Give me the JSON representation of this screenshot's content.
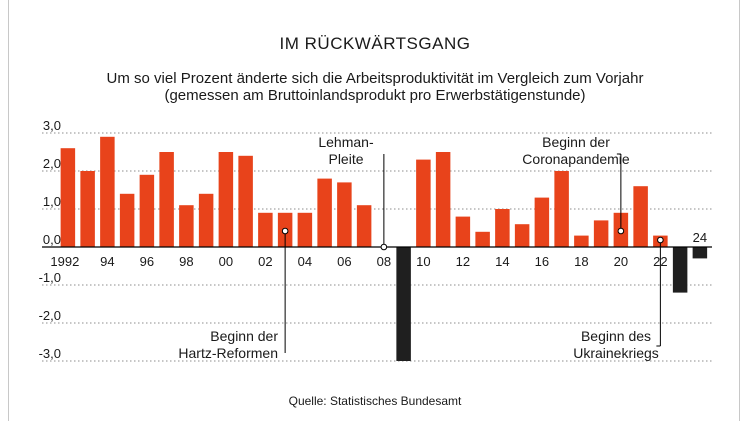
{
  "chart_data": {
    "type": "bar",
    "title": "IM RÜCKWÄRTSGANG",
    "subtitle_line1": "Um so viel Prozent änderte sich die Arbeitsproduktivität im Vergleich zum Vorjahr",
    "subtitle_line2": "(gemessen am Bruttoinlandsprodukt pro Erwerbstätigenstunde)",
    "source": "Quelle: Statistisches Bundesamt",
    "xlabel": "",
    "ylabel": "",
    "ylim": [
      -3.0,
      3.0
    ],
    "yticks": [
      {
        "value": 3.0,
        "label": "3,0"
      },
      {
        "value": 2.0,
        "label": "2,0"
      },
      {
        "value": 1.0,
        "label": "1,0"
      },
      {
        "value": 0.0,
        "label": "0,0"
      },
      {
        "value": -1.0,
        "label": "-1,0"
      },
      {
        "value": -2.0,
        "label": "-2,0"
      },
      {
        "value": -3.0,
        "label": "-3,0"
      }
    ],
    "categories": [
      1992,
      1993,
      1994,
      1995,
      1996,
      1997,
      1998,
      1999,
      2000,
      2001,
      2002,
      2003,
      2004,
      2005,
      2006,
      2007,
      2008,
      2009,
      2010,
      2011,
      2012,
      2013,
      2014,
      2015,
      2016,
      2017,
      2018,
      2019,
      2020,
      2021,
      2022,
      2023,
      2024
    ],
    "values": [
      2.6,
      2.0,
      2.9,
      1.4,
      1.9,
      2.5,
      1.1,
      1.4,
      2.5,
      2.4,
      0.9,
      0.9,
      0.9,
      1.8,
      1.7,
      1.1,
      0.0,
      -3.0,
      2.3,
      2.5,
      0.8,
      0.4,
      1.0,
      0.6,
      1.3,
      2.0,
      0.3,
      0.7,
      0.9,
      1.6,
      0.3,
      -1.2,
      -0.3
    ],
    "xticks": [
      {
        "year": 1992,
        "label": "1992"
      },
      {
        "year": 1994,
        "label": "94"
      },
      {
        "year": 1996,
        "label": "96"
      },
      {
        "year": 1998,
        "label": "98"
      },
      {
        "year": 2000,
        "label": "00"
      },
      {
        "year": 2002,
        "label": "02"
      },
      {
        "year": 2004,
        "label": "04"
      },
      {
        "year": 2006,
        "label": "06"
      },
      {
        "year": 2008,
        "label": "08"
      },
      {
        "year": 2010,
        "label": "10"
      },
      {
        "year": 2012,
        "label": "12"
      },
      {
        "year": 2014,
        "label": "14"
      },
      {
        "year": 2016,
        "label": "16"
      },
      {
        "year": 2018,
        "label": "18"
      },
      {
        "year": 2020,
        "label": "20"
      },
      {
        "year": 2022,
        "label": "22"
      },
      {
        "year": 2024,
        "label": "24"
      }
    ],
    "annotations": [
      {
        "year": 2003,
        "lines": [
          "Beginn der",
          "Hartz-Reformen"
        ]
      },
      {
        "year": 2008,
        "lines": [
          "Lehman-",
          "Pleite"
        ]
      },
      {
        "year": 2020,
        "lines": [
          "Beginn der",
          "Coronapandemie"
        ]
      },
      {
        "year": 2022,
        "lines": [
          "Beginn des",
          "Ukrainekriegs"
        ]
      }
    ],
    "colors": {
      "positive": "#e8431b",
      "negative": "#1f1f1f",
      "grid": "#8c8c8c",
      "text": "#1a1a1a"
    },
    "grid": true
  }
}
